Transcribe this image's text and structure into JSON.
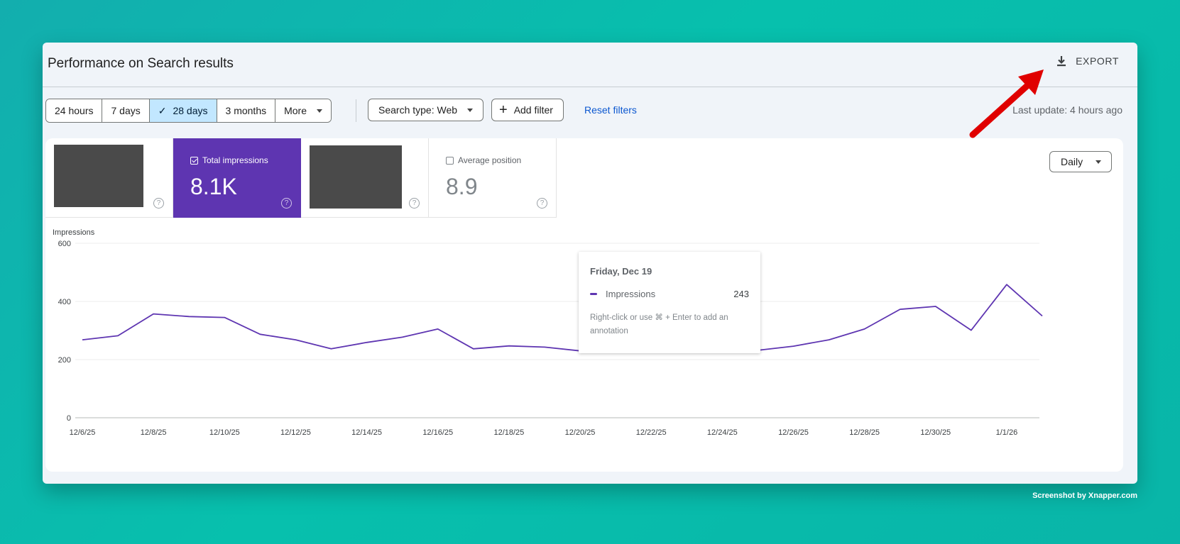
{
  "header": {
    "title": "Performance on Search results",
    "export_label": "EXPORT"
  },
  "filters": {
    "date_range": [
      {
        "label": "24 hours",
        "active": false
      },
      {
        "label": "7 days",
        "active": false
      },
      {
        "label": "28 days",
        "active": true
      },
      {
        "label": "3 months",
        "active": false
      },
      {
        "label": "More",
        "active": false
      }
    ],
    "search_type": "Search type: Web",
    "add_filter": "Add filter",
    "reset": "Reset filters",
    "last_update": "Last update: 4 hours ago"
  },
  "metrics": [
    {
      "label": "",
      "value": "",
      "redacted": true,
      "active": false
    },
    {
      "label": "Total impressions",
      "value": "8.1K",
      "active": true
    },
    {
      "label": "",
      "value": "",
      "redacted": true,
      "active": false
    },
    {
      "label": "Average position",
      "value": "8.9",
      "active": false
    }
  ],
  "granularity": "Daily",
  "tooltip": {
    "date": "Friday, Dec 19",
    "series": "Impressions",
    "value": "243",
    "note": "Right-click or use ⌘ + Enter to add an annotation"
  },
  "chart_data": {
    "type": "line",
    "ylabel": "Impressions",
    "ylim": [
      0,
      600
    ],
    "yticks": [
      0,
      200,
      400,
      600
    ],
    "xtick_labels": [
      "12/6/25",
      "12/8/25",
      "12/10/25",
      "12/12/25",
      "12/14/25",
      "12/16/25",
      "12/18/25",
      "12/20/25",
      "12/22/25",
      "12/24/25",
      "12/26/25",
      "12/28/25",
      "12/30/25",
      "1/1/26"
    ],
    "x": [
      "12/6/25",
      "12/7/25",
      "12/8/25",
      "12/9/25",
      "12/10/25",
      "12/11/25",
      "12/12/25",
      "12/13/25",
      "12/14/25",
      "12/15/25",
      "12/16/25",
      "12/17/25",
      "12/18/25",
      "12/19/25",
      "12/20/25",
      "12/21/25",
      "12/22/25",
      "12/23/25",
      "12/24/25",
      "12/25/25",
      "12/26/25",
      "12/27/25",
      "12/28/25",
      "12/29/25",
      "12/30/25",
      "12/31/25",
      "1/1/26",
      "1/2/26"
    ],
    "series": [
      {
        "name": "Impressions",
        "color": "#5e35b1",
        "values": [
          268,
          282,
          357,
          348,
          345,
          287,
          268,
          237,
          259,
          277,
          305,
          237,
          247,
          243,
          230,
          225,
          285,
          233,
          243,
          232,
          246,
          268,
          305,
          373,
          383,
          301,
          458,
          350
        ]
      }
    ],
    "grid": true
  },
  "colors": {
    "accent": "#5e35b1",
    "link": "#0b57d0",
    "annotation_arrow": "#ff0000"
  },
  "credit": "Screenshot by Xnapper.com"
}
